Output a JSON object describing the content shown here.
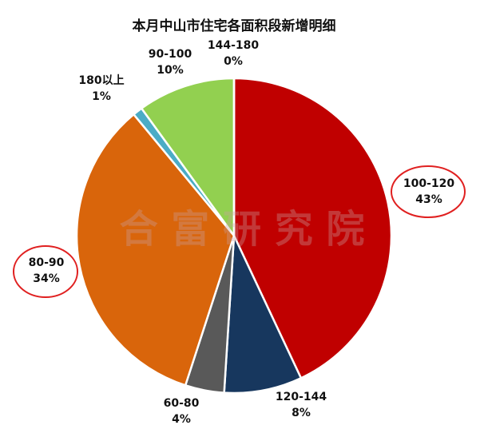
{
  "chart_data": {
    "type": "pie",
    "title": "本月中山市住宅各面积段新增明细",
    "watermark": "合 富 研 究 院",
    "categories": [
      "100-120",
      "120-144",
      "60-80",
      "80-90",
      "180以上",
      "90-100",
      "144-180"
    ],
    "values": [
      43,
      8,
      4,
      34,
      1,
      10,
      0
    ],
    "value_labels": [
      "43%",
      "8%",
      "4%",
      "34%",
      "1%",
      "10%",
      "0%"
    ],
    "colors": [
      "#c00000",
      "#17375e",
      "#595959",
      "#d9650b",
      "#4bacc6",
      "#92d050",
      "#ffffff"
    ]
  }
}
